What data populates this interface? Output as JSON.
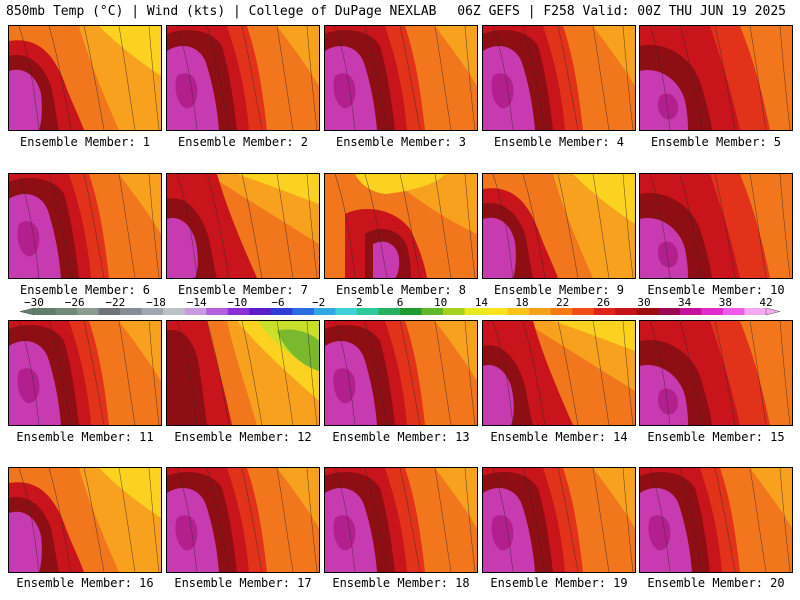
{
  "header": {
    "left": "850mb Temp (°C) | Wind (kts) | College of DuPage NEXLAB",
    "right": "06Z GEFS | F258 Valid: 00Z THU JUN 19 2025"
  },
  "caption_prefix": "Ensemble Member: ",
  "members": [
    {
      "label": "Ensemble Member: 1",
      "style": 1
    },
    {
      "label": "Ensemble Member: 2",
      "style": 0
    },
    {
      "label": "Ensemble Member: 3",
      "style": 0
    },
    {
      "label": "Ensemble Member: 4",
      "style": 0
    },
    {
      "label": "Ensemble Member: 5",
      "style": 2
    },
    {
      "label": "Ensemble Member: 6",
      "style": 0
    },
    {
      "label": "Ensemble Member: 7",
      "style": 3
    },
    {
      "label": "Ensemble Member: 8",
      "style": 4
    },
    {
      "label": "Ensemble Member: 9",
      "style": 1
    },
    {
      "label": "Ensemble Member: 10",
      "style": 2
    },
    {
      "label": "Ensemble Member: 11",
      "style": 0
    },
    {
      "label": "Ensemble Member: 12",
      "style": 5
    },
    {
      "label": "Ensemble Member: 13",
      "style": 0
    },
    {
      "label": "Ensemble Member: 14",
      "style": 3
    },
    {
      "label": "Ensemble Member: 15",
      "style": 2
    },
    {
      "label": "Ensemble Member: 16",
      "style": 1
    },
    {
      "label": "Ensemble Member: 17",
      "style": 0
    },
    {
      "label": "Ensemble Member: 18",
      "style": 0
    },
    {
      "label": "Ensemble Member: 19",
      "style": 0
    },
    {
      "label": "Ensemble Member: 20",
      "style": 0
    }
  ],
  "colorbar": {
    "ticks": [
      "-30",
      "-26",
      "-22",
      "-18",
      "-14",
      "-10",
      "-6",
      "-2",
      "2",
      "6",
      "10",
      "14",
      "18",
      "22",
      "26",
      "30",
      "34",
      "38",
      "42"
    ],
    "colors": [
      "#5f7f6a",
      "#718b78",
      "#8a9a8e",
      "#6f7479",
      "#858d96",
      "#9fa7b0",
      "#bcc1c7",
      "#c79be0",
      "#b25fe0",
      "#8a2fd6",
      "#5b1fc9",
      "#2f3fd4",
      "#2a6fe0",
      "#33a6e6",
      "#3fd0d8",
      "#2ec99a",
      "#27b060",
      "#1f9a2f",
      "#5fb82a",
      "#a6d11f",
      "#e8ea1f",
      "#fbe31e",
      "#fbc41a",
      "#f7a019",
      "#f57a16",
      "#ef4e16",
      "#e0241a",
      "#c41418",
      "#9e0c12",
      "#9a0a52",
      "#c4109a",
      "#e02cd0",
      "#f05ae8",
      "#f8a8f2"
    ]
  },
  "palette": {
    "magenta": "#c83ab0",
    "purple": "#b3208e",
    "darkred": "#8e0e14",
    "red": "#c8141a",
    "redorange": "#e3321a",
    "orange": "#f2761c",
    "lightorange": "#f7a11f",
    "yellow": "#fbd21f",
    "lime": "#c8e02a",
    "green": "#7ab82e",
    "border": "#000000"
  }
}
